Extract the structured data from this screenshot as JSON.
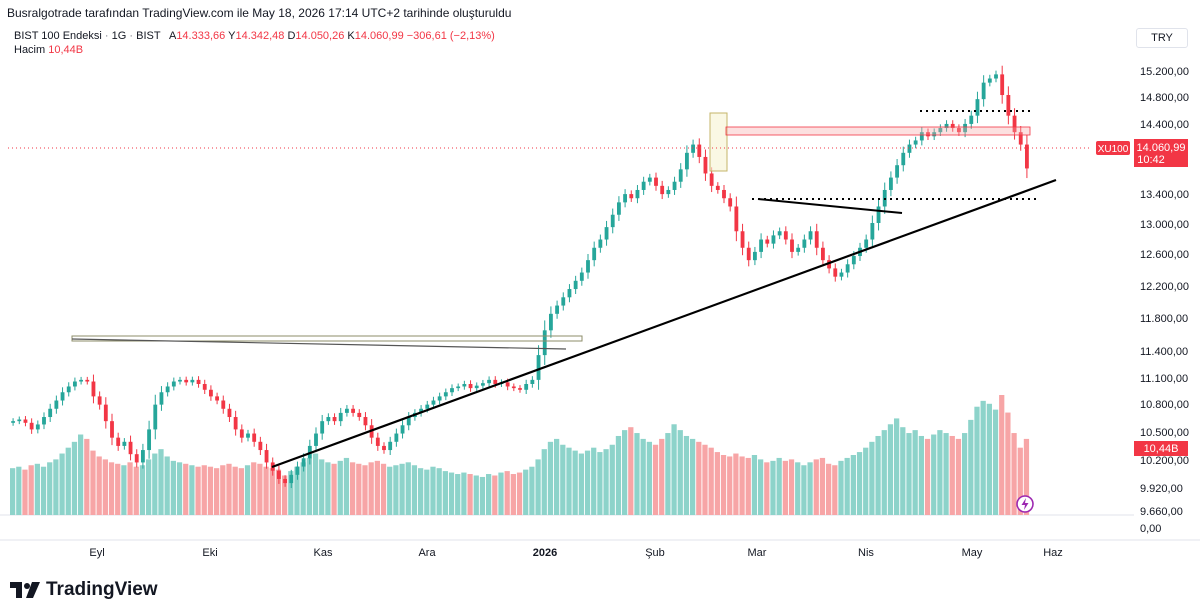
{
  "header": {
    "caption": "Busralgotrade tarafından TradingView.com ile May 18, 2026 17:14 UTC+2 tarihinde oluşturuldu",
    "symbol_name": "BIST 100 Endeksi",
    "interval": "1G",
    "exchange": "BIST",
    "sep": "·",
    "open_label": "A",
    "open_value": "14.333,66",
    "high_label": "Y",
    "high_value": "14.342,48",
    "low_label": "D",
    "low_value": "14.050,26",
    "close_label": "K",
    "close_value": "14.060,99",
    "change": "−306,61 (−2,13%)",
    "volume_label": "Hacim",
    "volume_value": "10,44B",
    "currency": "TRY"
  },
  "brand": {
    "name": "TradingView",
    "logo_icon": "tradingview-logo-icon"
  },
  "colors": {
    "up": "#26a69a",
    "down": "#f23645",
    "vol_up": "#8dd3ca",
    "vol_down": "#f7a5a6"
  },
  "chart_data": {
    "type": "candlestick",
    "symbol": "XU100",
    "y_axis_ticks": [
      "15.200,00",
      "14.800,00",
      "14.400,00",
      "14.060,99",
      "13.400,00",
      "13.000,00",
      "12.600,00",
      "12.200,00",
      "11.800,00",
      "11.400,00",
      "11.100,00",
      "10.800,00",
      "10.500,00",
      "10.200,00",
      "9.920,00",
      "9.660,00",
      "0,00"
    ],
    "x_axis_ticks": [
      "Eyl",
      "Eki",
      "Kas",
      "Ara",
      "2026",
      "Şub",
      "Mar",
      "Nis",
      "May",
      "Haz"
    ],
    "last_price": {
      "symbol": "XU100",
      "value": "14.060,99",
      "countdown": "10:42"
    },
    "last_volume": "10,44B",
    "price_range": [
      9500,
      15350
    ],
    "key_levels": [
      {
        "name": "resistance",
        "value": 11550
      },
      {
        "name": "support",
        "value": 13340
      },
      {
        "name": "top",
        "value": 14610
      },
      {
        "name": "zone",
        "value": [
          14300,
          14400
        ]
      }
    ],
    "trendline": {
      "from": [
        "2025-10-16",
        10160
      ],
      "to": [
        "2026-05-22",
        13600
      ]
    },
    "closes": [
      11000,
      11020,
      10980,
      10900,
      10960,
      11050,
      11150,
      11250,
      11350,
      11420,
      11480,
      11500,
      11480,
      11300,
      11200,
      11000,
      10800,
      10700,
      10750,
      10600,
      10500,
      10650,
      10900,
      11200,
      11350,
      11420,
      11480,
      11500,
      11470,
      11500,
      11450,
      11380,
      11300,
      11250,
      11150,
      11050,
      10900,
      10800,
      10850,
      10750,
      10650,
      10500,
      10400,
      10300,
      10250,
      10350,
      10450,
      10550,
      10700,
      10850,
      11000,
      11050,
      11000,
      11100,
      11150,
      11100,
      11050,
      10950,
      10800,
      10700,
      10650,
      10750,
      10850,
      10950,
      11050,
      11100,
      11150,
      11200,
      11250,
      11300,
      11350,
      11400,
      11420,
      11450,
      11400,
      11430,
      11460,
      11500,
      11450,
      11470,
      11420,
      11400,
      11380,
      11450,
      11500,
      11800,
      12100,
      12300,
      12400,
      12500,
      12600,
      12700,
      12800,
      12950,
      13100,
      13200,
      13350,
      13500,
      13650,
      13750,
      13700,
      13800,
      13900,
      13950,
      13850,
      13750,
      13800,
      13900,
      14050,
      14250,
      14350,
      14200,
      14000,
      13850,
      13800,
      13700,
      13600,
      13300,
      13100,
      12950,
      13050,
      13200,
      13150,
      13250,
      13300,
      13200,
      13050,
      13100,
      13200,
      13300,
      13100,
      12950,
      12850,
      12750,
      12800,
      12900,
      13000,
      13100,
      13200,
      13400,
      13600,
      13800,
      13950,
      14100,
      14250,
      14350,
      14400,
      14500,
      14450,
      14500,
      14550,
      14600,
      14550,
      14500,
      14600,
      14700,
      14900,
      15100,
      15150,
      15200,
      14950,
      14700,
      14500,
      14350,
      14060.99
    ],
    "volumes": [
      3.2,
      3.3,
      3.1,
      3.4,
      3.5,
      3.3,
      3.6,
      3.8,
      4.2,
      4.6,
      5.0,
      5.5,
      5.2,
      4.4,
      4.0,
      3.8,
      3.6,
      3.5,
      3.4,
      3.6,
      3.3,
      3.4,
      3.8,
      4.2,
      4.5,
      4.0,
      3.7,
      3.6,
      3.5,
      3.4,
      3.3,
      3.4,
      3.3,
      3.2,
      3.4,
      3.5,
      3.3,
      3.2,
      3.4,
      3.6,
      3.5,
      3.3,
      3.2,
      3.1,
      2.7,
      3.0,
      3.3,
      3.6,
      3.9,
      4.2,
      3.8,
      3.6,
      3.5,
      3.7,
      3.9,
      3.6,
      3.5,
      3.4,
      3.6,
      3.7,
      3.5,
      3.3,
      3.4,
      3.5,
      3.6,
      3.4,
      3.2,
      3.1,
      3.3,
      3.2,
      3.0,
      2.9,
      2.8,
      2.9,
      2.8,
      2.7,
      2.6,
      2.8,
      2.7,
      2.9,
      3.0,
      2.8,
      2.9,
      3.1,
      3.3,
      3.8,
      4.5,
      5.0,
      5.2,
      4.8,
      4.6,
      4.4,
      4.2,
      4.4,
      4.6,
      4.3,
      4.5,
      4.8,
      5.4,
      5.8,
      6.0,
      5.6,
      5.2,
      5.0,
      4.8,
      5.2,
      5.6,
      6.2,
      5.8,
      5.4,
      5.2,
      5.0,
      4.8,
      4.6,
      4.3,
      4.1,
      4.0,
      4.2,
      4.0,
      3.9,
      4.1,
      3.8,
      3.6,
      3.7,
      3.9,
      3.7,
      3.8,
      3.6,
      3.4,
      3.6,
      3.8,
      3.9,
      3.5,
      3.4,
      3.7,
      3.9,
      4.1,
      4.3,
      4.6,
      5.0,
      5.4,
      5.8,
      6.2,
      6.6,
      6.0,
      5.6,
      5.8,
      5.4,
      5.2,
      5.5,
      5.8,
      5.6,
      5.4,
      5.2,
      5.6,
      6.5,
      7.4,
      7.8,
      7.6,
      7.2,
      8.2,
      7.0,
      5.6,
      4.6,
      5.2
    ]
  }
}
